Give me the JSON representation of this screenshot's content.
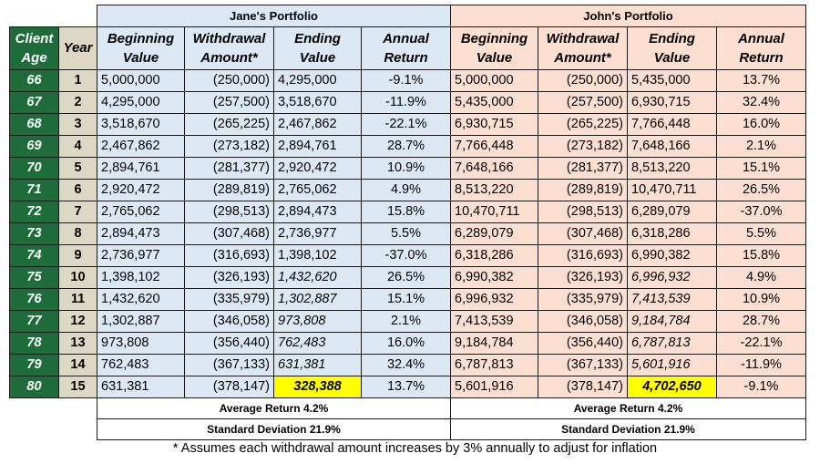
{
  "jane": {
    "title": "Jane's Portfolio",
    "headers": [
      "Beginning Value",
      "Withdrawal Amount*",
      "Ending Value",
      "Annual Return"
    ],
    "average_return": "Average Return 4.2%",
    "std_dev": "Standard Deviation 21.9%"
  },
  "john": {
    "title": "John's Portfolio",
    "headers": [
      "Beginning Value",
      "Withdrawal Amount*",
      "Ending Value",
      "Annual Return"
    ],
    "average_return": "Average Return 4.2%",
    "std_dev": "Standard Deviation 21.9%"
  },
  "left_headers": {
    "age": "Client Age",
    "year": "Year"
  },
  "rows": [
    {
      "age": "66",
      "year": "1",
      "j_begin": "5,000,000",
      "j_withdraw": "(250,000)",
      "j_end": "4,295,000",
      "j_return": "-9.1%",
      "p_begin": "5,000,000",
      "p_withdraw": "(250,000)",
      "p_end": "5,435,000",
      "p_return": "13.7%"
    },
    {
      "age": "67",
      "year": "2",
      "j_begin": "4,295,000",
      "j_withdraw": "(257,500)",
      "j_end": "3,518,670",
      "j_return": "-11.9%",
      "p_begin": "5,435,000",
      "p_withdraw": "(257,500)",
      "p_end": "6,930,715",
      "p_return": "32.4%"
    },
    {
      "age": "68",
      "year": "3",
      "j_begin": "3,518,670",
      "j_withdraw": "(265,225)",
      "j_end": "2,467,862",
      "j_return": "-22.1%",
      "p_begin": "6,930,715",
      "p_withdraw": "(265,225)",
      "p_end": "7,766,448",
      "p_return": "16.0%"
    },
    {
      "age": "69",
      "year": "4",
      "j_begin": "2,467,862",
      "j_withdraw": "(273,182)",
      "j_end": "2,894,761",
      "j_return": "28.7%",
      "p_begin": "7,766,448",
      "p_withdraw": "(273,182)",
      "p_end": "7,648,166",
      "p_return": "2.1%"
    },
    {
      "age": "70",
      "year": "5",
      "j_begin": "2,894,761",
      "j_withdraw": "(281,377)",
      "j_end": "2,920,472",
      "j_return": "10.9%",
      "p_begin": "7,648,166",
      "p_withdraw": "(281,377)",
      "p_end": "8,513,220",
      "p_return": "15.1%"
    },
    {
      "age": "71",
      "year": "6",
      "j_begin": "2,920,472",
      "j_withdraw": "(289,819)",
      "j_end": "2,765,062",
      "j_return": "4.9%",
      "p_begin": "8,513,220",
      "p_withdraw": "(289,819)",
      "p_end": "10,470,711",
      "p_return": "26.5%"
    },
    {
      "age": "72",
      "year": "7",
      "j_begin": "2,765,062",
      "j_withdraw": "(298,513)",
      "j_end": "2,894,473",
      "j_return": "15.8%",
      "p_begin": "10,470,711",
      "p_withdraw": "(298,513)",
      "p_end": "6,289,079",
      "p_return": "-37.0%"
    },
    {
      "age": "73",
      "year": "8",
      "j_begin": "2,894,473",
      "j_withdraw": "(307,468)",
      "j_end": "2,736,977",
      "j_return": "5.5%",
      "p_begin": "6,289,079",
      "p_withdraw": "(307,468)",
      "p_end": "6,318,286",
      "p_return": "5.5%"
    },
    {
      "age": "74",
      "year": "9",
      "j_begin": "2,736,977",
      "j_withdraw": "(316,693)",
      "j_end": "1,398,102",
      "j_return": "-37.0%",
      "p_begin": "6,318,286",
      "p_withdraw": "(316,693)",
      "p_end": "6,990,382",
      "p_return": "15.8%"
    },
    {
      "age": "75",
      "year": "10",
      "j_begin": "1,398,102",
      "j_withdraw": "(326,193)",
      "j_end": "1,432,620",
      "j_return": "26.5%",
      "p_begin": "6,990,382",
      "p_withdraw": "(326,193)",
      "p_end": "6,996,932",
      "p_return": "4.9%",
      "j_end_italic": true,
      "p_end_italic": true
    },
    {
      "age": "76",
      "year": "11",
      "j_begin": "1,432,620",
      "j_withdraw": "(335,979)",
      "j_end": "1,302,887",
      "j_return": "15.1%",
      "p_begin": "6,996,932",
      "p_withdraw": "(335,979)",
      "p_end": "7,413,539",
      "p_return": "10.9%",
      "j_end_italic": true,
      "p_end_italic": true
    },
    {
      "age": "77",
      "year": "12",
      "j_begin": "1,302,887",
      "j_withdraw": "(346,058)",
      "j_end": "973,808",
      "j_return": "2.1%",
      "p_begin": "7,413,539",
      "p_withdraw": "(346,058)",
      "p_end": "9,184,784",
      "p_return": "28.7%",
      "j_end_italic": true,
      "p_end_italic": true
    },
    {
      "age": "78",
      "year": "13",
      "j_begin": "973,808",
      "j_withdraw": "(356,440)",
      "j_end": "762,483",
      "j_return": "16.0%",
      "p_begin": "9,184,784",
      "p_withdraw": "(356,440)",
      "p_end": "6,787,813",
      "p_return": "-22.1%",
      "j_end_italic": true,
      "p_end_italic": true
    },
    {
      "age": "79",
      "year": "14",
      "j_begin": "762,483",
      "j_withdraw": "(367,133)",
      "j_end": "631,381",
      "j_return": "32.4%",
      "p_begin": "6,787,813",
      "p_withdraw": "(367,133)",
      "p_end": "5,601,916",
      "p_return": "-11.9%",
      "j_end_italic": true,
      "p_end_italic": true
    },
    {
      "age": "80",
      "year": "15",
      "j_begin": "631,381",
      "j_withdraw": "(378,147)",
      "j_end": "328,388",
      "j_return": "13.7%",
      "p_begin": "5,601,916",
      "p_withdraw": "(378,147)",
      "p_end": "4,702,650",
      "p_return": "-9.1%",
      "highlight": true
    }
  ],
  "footnote": "* Assumes each withdrawal amount increases by 3% annually to adjust for inflation",
  "colors": {
    "jane_fill": "#dce9f5",
    "john_fill": "#fcdfd0",
    "age_fill": "#1e6c3a",
    "year_fill": "#ddd8c4",
    "highlight": "#ffff00"
  }
}
